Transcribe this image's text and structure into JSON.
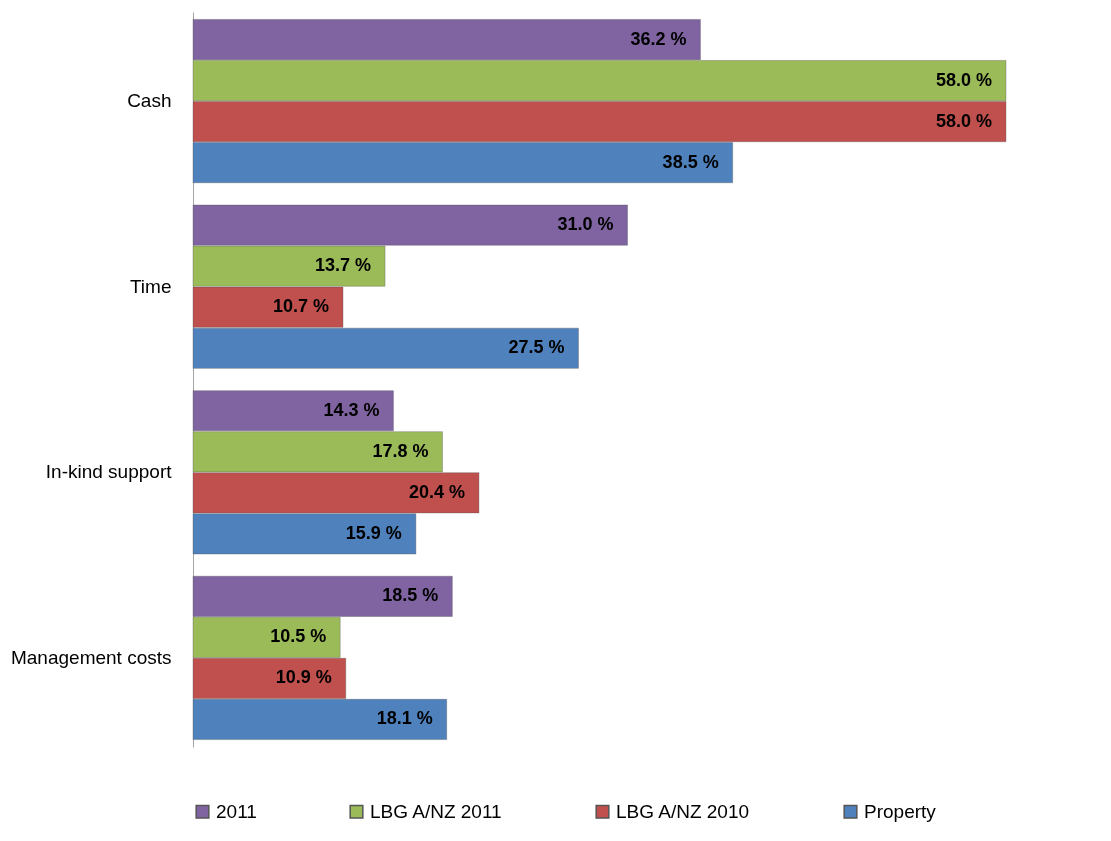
{
  "chart_data": {
    "type": "bar",
    "orientation": "horizontal",
    "data_labels": true,
    "legend": "bottom",
    "grid": false,
    "categories": [
      "Cash",
      "Time",
      "In-kind support",
      "Management costs"
    ],
    "series": [
      {
        "name": "2011",
        "color": "#8064a2",
        "values": [
          36.2,
          31.0,
          14.3,
          18.5
        ],
        "value_labels": [
          "36.2 %",
          "31.0 %",
          "14.3 %",
          "18.5 %"
        ]
      },
      {
        "name": "LBG A/NZ 2011",
        "color": "#9bbb59",
        "values": [
          58.0,
          13.7,
          17.8,
          10.5
        ],
        "value_labels": [
          "58.0 %",
          "13.7 %",
          "17.8 %",
          "10.5 %"
        ]
      },
      {
        "name": "LBG A/NZ 2010",
        "color": "#c0504d",
        "values": [
          58.0,
          10.7,
          20.4,
          10.9
        ],
        "value_labels": [
          "58.0 %",
          "10.7 %",
          "20.4 %",
          "10.9 %"
        ]
      },
      {
        "name": "Property",
        "color": "#4f81bd",
        "values": [
          38.5,
          27.5,
          15.9,
          18.1
        ],
        "value_labels": [
          "38.5 %",
          "27.5 %",
          "15.9 %",
          "18.1 %"
        ]
      }
    ]
  }
}
